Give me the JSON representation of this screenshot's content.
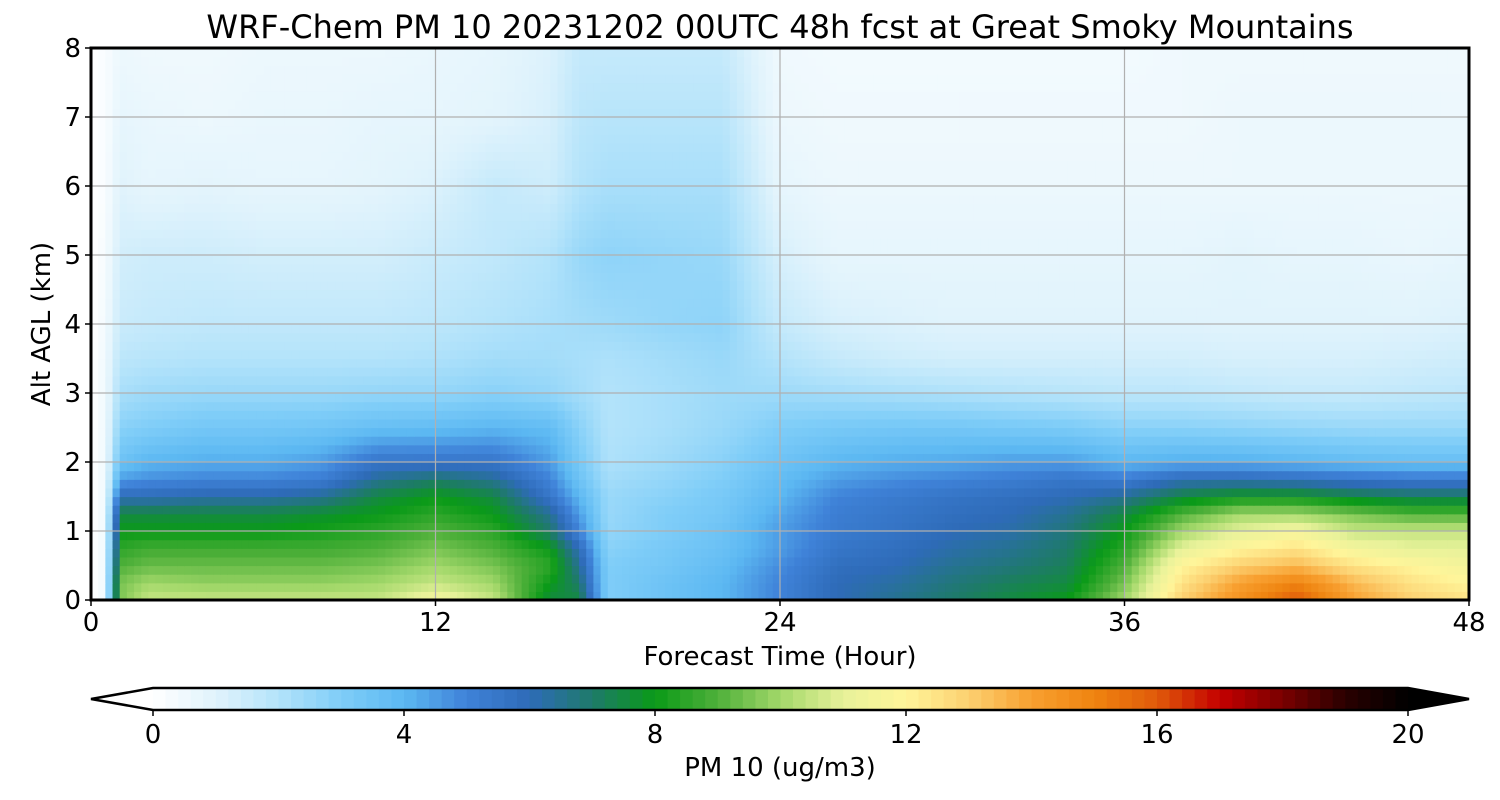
{
  "chart_data": {
    "type": "heatmap",
    "title": "WRF-Chem PM 10  20231202 00UTC 48h fcst at Great Smoky Mountains",
    "xlabel": "Forecast Time (Hour)",
    "ylabel": "Alt AGL (km)",
    "xlim": [
      0,
      48
    ],
    "ylim": [
      0,
      8
    ],
    "x_ticks": [
      0,
      12,
      24,
      36,
      48
    ],
    "y_ticks": [
      0,
      1,
      2,
      3,
      4,
      5,
      6,
      7,
      8
    ],
    "grid": true,
    "colorbar": {
      "label": "PM 10  (ug/m3)",
      "range": [
        0,
        20
      ],
      "ticks": [
        0,
        4,
        8,
        12,
        16,
        20
      ],
      "extend": "both",
      "colors": [
        "#ffffff",
        "#e0f3fc",
        "#b3e3fa",
        "#7fcdf8",
        "#5cb8f2",
        "#3f82d8",
        "#2e6bb8",
        "#1e7a6a",
        "#0a9a18",
        "#4fb03a",
        "#a3d86a",
        "#e8f29a",
        "#fff59a",
        "#fcd070",
        "#f8a030",
        "#ef8410",
        "#e05a0a",
        "#c40000",
        "#7a0000",
        "#2a0000",
        "#000000"
      ]
    },
    "x": [
      0,
      0.5,
      1,
      2,
      4,
      6,
      8,
      10,
      12,
      14,
      16,
      17,
      18,
      20,
      22,
      24,
      26,
      28,
      30,
      32,
      34,
      36,
      38,
      40,
      42,
      44,
      46,
      48
    ],
    "y": [
      0,
      0.25,
      0.5,
      0.75,
      1,
      1.25,
      1.5,
      1.75,
      2,
      2.5,
      3,
      3.5,
      4,
      5,
      6,
      7,
      8
    ],
    "values": [
      [
        0,
        0.5,
        9.5,
        10.5,
        10.5,
        10.5,
        10.5,
        10.5,
        11.5,
        10.5,
        7.5,
        7.5,
        3,
        3.5,
        4,
        5,
        6,
        6.5,
        7,
        7.5,
        8,
        10,
        13,
        14.5,
        16,
        14,
        13,
        12.5
      ],
      [
        0,
        0.5,
        9.5,
        10,
        9.8,
        9.8,
        9.8,
        10,
        10.5,
        10,
        8,
        7,
        3,
        3.5,
        4,
        5,
        6,
        6.3,
        6.8,
        7.2,
        7.5,
        9.5,
        12.5,
        14,
        15,
        13.5,
        12.5,
        12
      ],
      [
        0,
        0.5,
        9,
        9.3,
        9.3,
        9.3,
        9.3,
        9.5,
        10,
        9.5,
        8.5,
        6.5,
        3,
        3.3,
        3.8,
        4.8,
        5.8,
        6,
        6.5,
        6.8,
        7.2,
        9,
        12,
        13,
        13.5,
        12.5,
        12,
        11.5
      ],
      [
        0,
        0.5,
        8.5,
        8.8,
        8.8,
        8.8,
        8.8,
        9,
        9.5,
        9,
        8,
        6,
        2.8,
        3.2,
        3.6,
        4.5,
        5.5,
        5.8,
        6.2,
        6.5,
        7,
        8.5,
        11,
        12,
        12.5,
        11.5,
        11,
        11
      ],
      [
        0,
        0.5,
        8,
        8,
        8,
        8,
        8.2,
        8.5,
        9,
        8.5,
        7,
        5,
        2.6,
        3,
        3.5,
        4.5,
        5.3,
        5.6,
        6,
        6.2,
        6.8,
        8,
        10,
        11,
        11.5,
        10.5,
        10.5,
        10.5
      ],
      [
        0,
        0.5,
        7.5,
        7.5,
        7.5,
        7.5,
        7.7,
        8,
        8.5,
        8,
        6.5,
        4.5,
        2.5,
        3,
        3.3,
        4.3,
        5.2,
        5.5,
        5.8,
        6,
        6.5,
        7.5,
        9,
        10,
        10,
        9.5,
        9,
        9
      ],
      [
        0,
        0.5,
        6,
        6,
        6.2,
        6.2,
        6.5,
        7.5,
        8,
        7.5,
        5.5,
        4,
        2.5,
        2.8,
        3.2,
        4,
        5,
        5.3,
        5.6,
        5.8,
        6,
        6.5,
        7.5,
        8,
        8,
        7.5,
        7.2,
        7.2
      ],
      [
        0,
        0.5,
        4.5,
        4.8,
        5,
        5,
        5.2,
        6.5,
        7,
        6.5,
        5,
        3.5,
        2.3,
        2.6,
        3,
        3.8,
        4.5,
        4.8,
        5,
        5.2,
        5.5,
        5.2,
        6,
        6,
        5.8,
        5.5,
        5.3,
        5.3
      ],
      [
        0,
        0.5,
        3.5,
        4,
        4.2,
        4.2,
        4.5,
        5.5,
        5.5,
        5.5,
        4.5,
        3.2,
        2.1,
        2.4,
        2.8,
        3.5,
        4,
        4.2,
        4.3,
        4.5,
        4.5,
        4,
        4.2,
        4.2,
        4,
        3.8,
        3.7,
        3.7
      ],
      [
        0,
        0.5,
        2.8,
        3,
        3.3,
        3.3,
        3.4,
        3.7,
        3.8,
        4,
        3.8,
        2.8,
        2,
        2.2,
        2.5,
        3,
        3.2,
        3.3,
        3.3,
        3.2,
        3.1,
        2.8,
        2.8,
        2.7,
        2.6,
        2.5,
        2.5,
        2.5
      ],
      [
        0,
        0.5,
        2.2,
        2.4,
        2.5,
        2.5,
        2.5,
        2.6,
        2.6,
        2.8,
        2.6,
        2.3,
        2,
        2.2,
        2.4,
        2.4,
        2.3,
        2.2,
        2.1,
        2,
        1.9,
        1.8,
        1.8,
        1.7,
        1.6,
        1.6,
        1.7,
        1.8
      ],
      [
        0,
        0.5,
        1.8,
        1.9,
        2,
        2,
        2,
        2,
        2.1,
        2.3,
        2.3,
        2.2,
        2.1,
        2.3,
        2.5,
        2,
        1.6,
        1.4,
        1.3,
        1.3,
        1.3,
        1.3,
        1.3,
        1.2,
        1.2,
        1.2,
        1.3,
        1.4
      ],
      [
        0,
        0.4,
        1.5,
        1.6,
        1.7,
        1.7,
        1.7,
        1.7,
        1.8,
        2,
        2.2,
        2.3,
        2.4,
        2.6,
        2.7,
        1.6,
        1.2,
        1.1,
        1,
        1,
        1,
        1,
        1,
        1,
        1,
        1,
        1,
        1.1
      ],
      [
        0,
        0.3,
        1.3,
        1.4,
        1.4,
        1.3,
        1.3,
        1.3,
        1.5,
        1.7,
        2,
        2.5,
        2.7,
        2.6,
        2.5,
        1.2,
        0.8,
        0.8,
        0.8,
        0.8,
        0.8,
        0.8,
        0.8,
        0.9,
        0.8,
        0.8,
        0.7,
        0.8
      ],
      [
        0,
        0.2,
        1,
        0.8,
        0.9,
        0.8,
        0.8,
        0.9,
        1.1,
        1.6,
        1.4,
        2,
        2.2,
        2.2,
        2.2,
        0.8,
        0.6,
        0.6,
        0.6,
        0.6,
        0.6,
        0.6,
        0.6,
        0.6,
        0.6,
        0.6,
        0.6,
        0.6
      ],
      [
        0,
        0.2,
        0.8,
        0.7,
        0.6,
        0.7,
        0.7,
        0.8,
        0.8,
        0.9,
        1.2,
        1.8,
        1.9,
        1.9,
        1.9,
        0.6,
        0.5,
        0.5,
        0.5,
        0.5,
        0.5,
        0.5,
        0.5,
        0.6,
        0.6,
        0.6,
        0.6,
        0.6
      ],
      [
        0,
        0.2,
        0.6,
        0.5,
        0.5,
        0.6,
        0.6,
        0.6,
        0.7,
        0.8,
        1.1,
        1.6,
        1.6,
        1.6,
        1.6,
        0.5,
        0.4,
        0.4,
        0.4,
        0.4,
        0.4,
        0.4,
        0.5,
        0.5,
        0.5,
        0.5,
        0.5,
        0.5
      ]
    ]
  }
}
